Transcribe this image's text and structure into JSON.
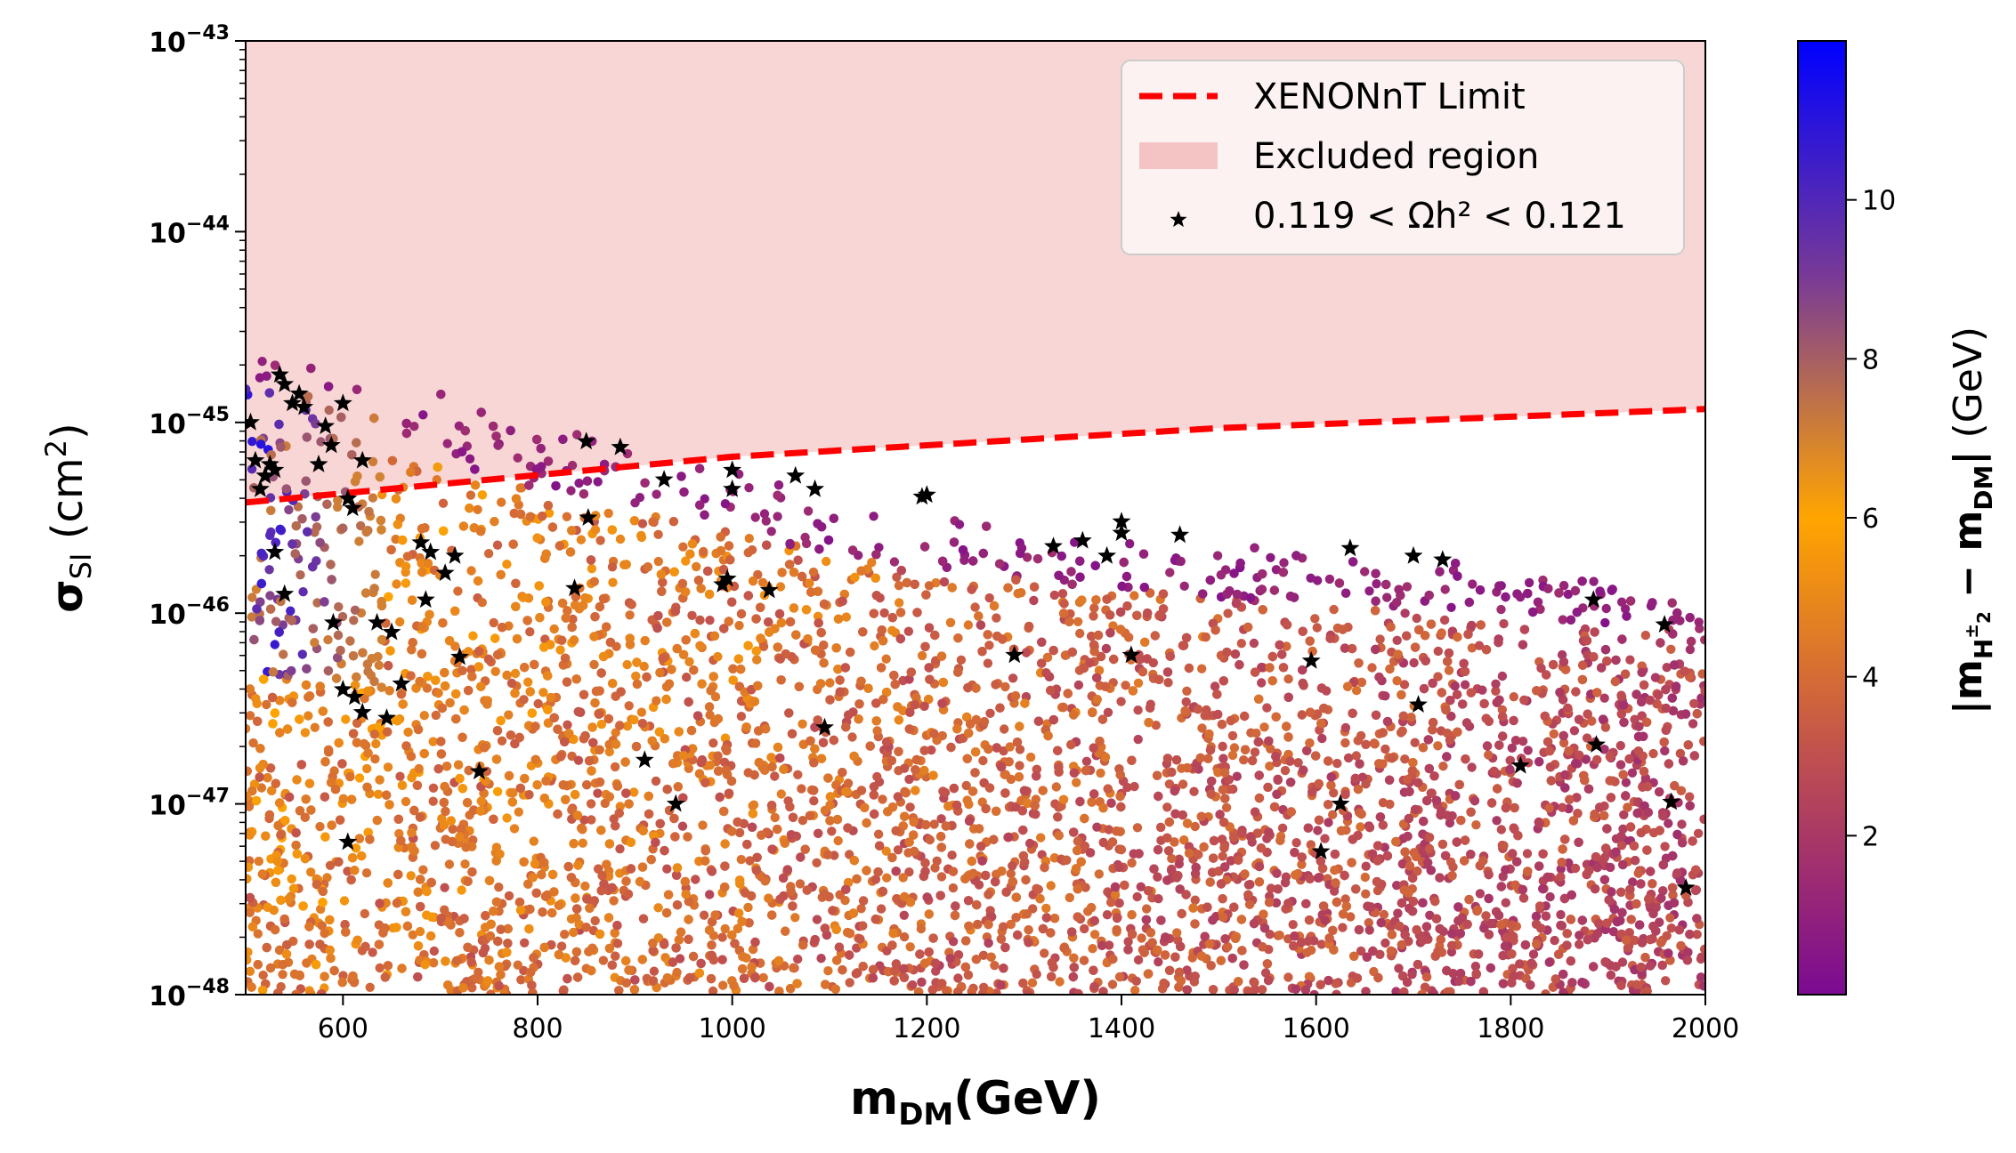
{
  "chart_data": {
    "type": "scatter",
    "xlabel": "m_DM(GeV)",
    "ylabel": "σ_SI (cm²)",
    "xlim": [
      500,
      2000
    ],
    "ylim_log10": [
      -48,
      -43
    ],
    "x_ticks": [
      600,
      800,
      1000,
      1200,
      1400,
      1600,
      1800,
      2000
    ],
    "x_tick_labels": [
      "600",
      "800",
      "1000",
      "1200",
      "1400",
      "1600",
      "1800",
      "2000"
    ],
    "y_ticks_log10": [
      -48,
      -47,
      -46,
      -45,
      -44,
      -43
    ],
    "y_tick_labels": [
      "10^-48",
      "10^-47",
      "10^-46",
      "10^-45",
      "10^-44",
      "10^-43"
    ],
    "colorbar": {
      "label": "|m_H2± − m_DM| (GeV)",
      "range": [
        0.0,
        12.0
      ],
      "ticks": [
        2,
        4,
        6,
        8,
        10
      ],
      "tick_labels": [
        "2",
        "4",
        "6",
        "8",
        "10"
      ],
      "colormap": [
        "#7b0a93",
        "#c0504f",
        "#ffa500",
        "#7a3b95",
        "#0000ff"
      ]
    },
    "legend": {
      "placement": "top-right",
      "entries": [
        {
          "label": "XENONnT Limit",
          "kind": "dashed-line",
          "color": "#ff0000"
        },
        {
          "label": "Excluded region",
          "kind": "patch",
          "color": "#f4c3c3"
        },
        {
          "label": "0.119 < Ωh² < 0.121",
          "kind": "star-marker",
          "color": "#000000"
        }
      ]
    },
    "xenonnt_limit": {
      "x": [
        500,
        1000,
        1500,
        2000
      ],
      "log10_sigma": [
        -45.42,
        -45.18,
        -45.03,
        -44.93
      ]
    },
    "scan_envelope": {
      "x": [
        500,
        700,
        1000,
        1200,
        1500,
        1800,
        2000
      ],
      "log10_sigma_upper": [
        -44.63,
        -44.85,
        -45.25,
        -45.48,
        -45.64,
        -45.75,
        -45.83
      ]
    },
    "relic_points": {
      "x": [
        505,
        510,
        515,
        520,
        525,
        530,
        535,
        540,
        548,
        555,
        560,
        575,
        582,
        588,
        600,
        605,
        610,
        620,
        530,
        540,
        590,
        600,
        612,
        620,
        635,
        645,
        650,
        660,
        680,
        685,
        690,
        705,
        715,
        720,
        740,
        605,
        838,
        850,
        852,
        885,
        910,
        930,
        942,
        990,
        995,
        1000,
        1000,
        1038,
        1065,
        1085,
        1095,
        1195,
        1200,
        1290,
        1330,
        1360,
        1385,
        1400,
        1400,
        1410,
        1460,
        1595,
        1605,
        1625,
        1635,
        1700,
        1705,
        1730,
        1810,
        1885,
        1888,
        1958,
        1965,
        1980
      ],
      "log10_sigma": [
        -45.0,
        -45.2,
        -45.35,
        -45.28,
        -45.22,
        -45.25,
        -44.75,
        -44.8,
        -44.9,
        -44.85,
        -44.92,
        -45.22,
        -45.02,
        -45.12,
        -44.9,
        -45.4,
        -45.45,
        -45.2,
        -45.68,
        -45.9,
        -46.05,
        -46.4,
        -46.44,
        -46.52,
        -46.05,
        -46.55,
        -46.1,
        -46.37,
        -45.63,
        -45.93,
        -45.68,
        -45.79,
        -45.7,
        -46.23,
        -46.83,
        -47.2,
        -45.87,
        -45.1,
        -45.5,
        -45.13,
        -46.77,
        -45.3,
        -47.0,
        -45.85,
        -45.82,
        -45.25,
        -45.35,
        -45.88,
        -45.28,
        -45.35,
        -46.6,
        -45.39,
        -45.38,
        -46.22,
        -45.65,
        -45.62,
        -45.7,
        -45.52,
        -45.58,
        -46.22,
        -45.59,
        -46.25,
        -47.25,
        -47.0,
        -45.66,
        -45.7,
        -46.48,
        -45.72,
        -46.8,
        -45.93,
        -46.69,
        -46.06,
        -46.99,
        -47.44
      ]
    }
  }
}
